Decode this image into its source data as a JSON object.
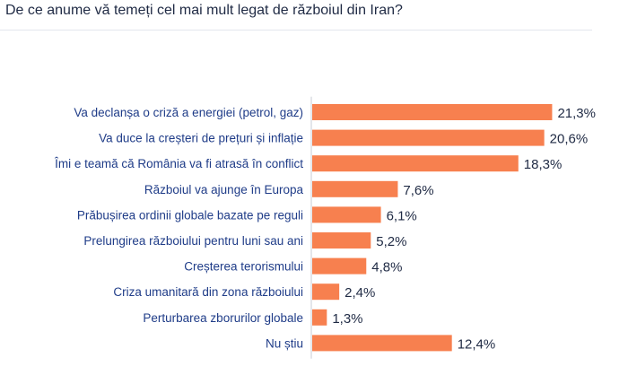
{
  "chart_data": {
    "type": "bar",
    "orientation": "horizontal",
    "title": "De ce anume vă temeți cel mai mult legat de războiul din Iran?",
    "categories": [
      "Va declanșa o criză a energiei (petrol, gaz)",
      "Va duce la creșteri de prețuri și inflație",
      "Îmi e teamă că România va fi atrasă în conflict",
      "Războiul va ajunge în Europa",
      "Prăbușirea ordinii globale bazate pe reguli",
      "Prelungirea războiului pentru luni sau ani",
      "Creșterea terorismului",
      "Criza umanitară din zona războiului",
      "Perturbarea zborurilor globale",
      "Nu știu"
    ],
    "values": [
      21.3,
      20.6,
      18.3,
      7.6,
      6.1,
      5.2,
      4.8,
      2.4,
      1.3,
      12.4
    ],
    "value_labels": [
      "21,3%",
      "20,6%",
      "18,3%",
      "7,6%",
      "6,1%",
      "5,2%",
      "4,8%",
      "2,4%",
      "1,3%",
      "12,4%"
    ],
    "xlim": [
      0,
      22.3
    ],
    "bar_color": "#f7804f",
    "xlabel": "",
    "ylabel": ""
  }
}
